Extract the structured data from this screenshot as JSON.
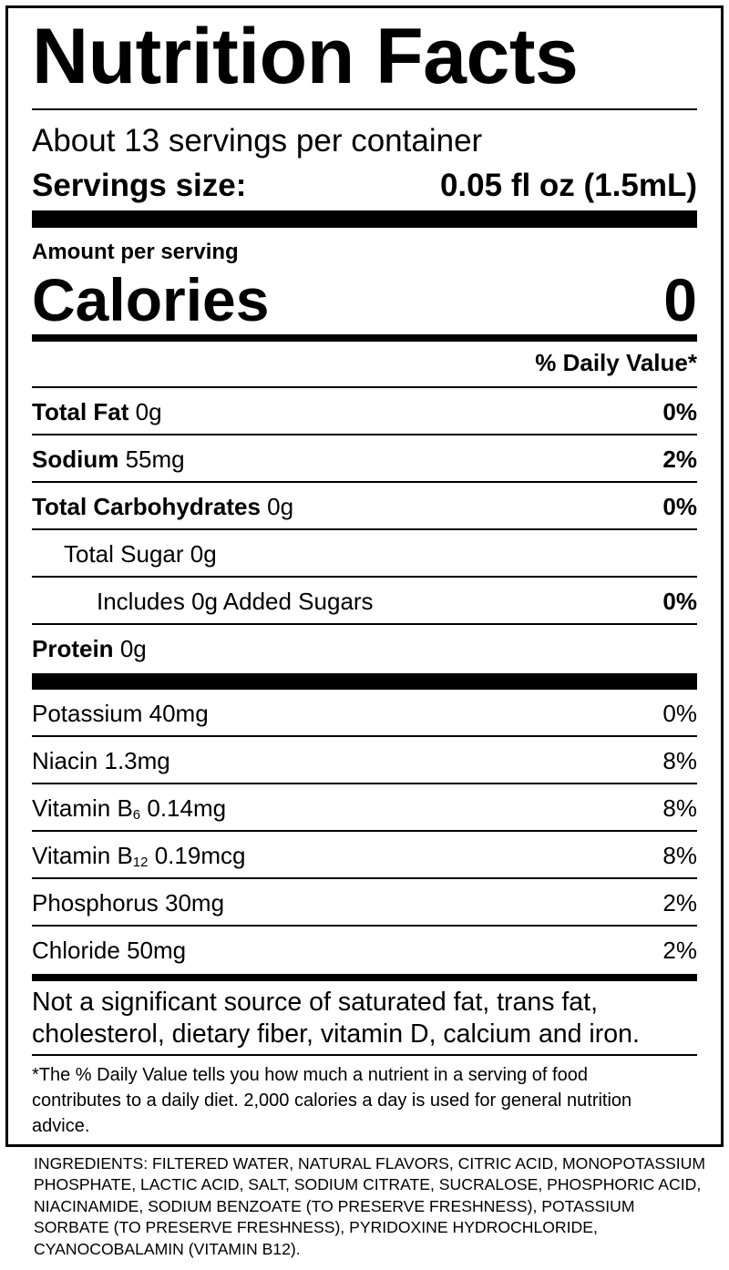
{
  "title": "Nutrition Facts",
  "servings_per_container": "About 13 servings per container",
  "serving_size_label": "Servings size:",
  "serving_size_value": "0.05 fl oz (1.5mL)",
  "amount_per_serving": "Amount per serving",
  "calories_label": "Calories",
  "calories_value": "0",
  "daily_value_header": "% Daily Value*",
  "nutrients": [
    {
      "name": "Total Fat",
      "amount": "0g",
      "dv": "0%"
    },
    {
      "name": "Sodium",
      "amount": "55mg",
      "dv": "2%"
    },
    {
      "name": "Total Carbohydrates",
      "amount": "0g",
      "dv": "0%"
    },
    {
      "name": "Total Sugar 0g",
      "amount": "",
      "dv": ""
    },
    {
      "name": "Includes 0g Added Sugars",
      "amount": "",
      "dv": "0%"
    },
    {
      "name": "Protein",
      "amount": "0g",
      "dv": ""
    }
  ],
  "vitamins": [
    {
      "name": "Potassium",
      "sub": "",
      "amount": "40mg",
      "dv": "0%"
    },
    {
      "name": "Niacin",
      "sub": "",
      "amount": "1.3mg",
      "dv": "8%"
    },
    {
      "name": "Vitamin B",
      "sub": "6",
      "amount": "0.14mg",
      "dv": "8%"
    },
    {
      "name": "Vitamin B",
      "sub": "12",
      "amount": "0.19mcg",
      "dv": "8%"
    },
    {
      "name": "Phosphorus",
      "sub": "",
      "amount": "30mg",
      "dv": "2%"
    },
    {
      "name": "Chloride",
      "sub": "",
      "amount": "50mg",
      "dv": "2%"
    }
  ],
  "not_significant": "Not a significant source of saturated fat, trans fat, cholesterol, dietary fiber, vitamin D, calcium and iron.",
  "footnote": "*The % Daily Value tells you how much a nutrient in a serving of food contributes to a daily diet. 2,000 calories a day is used for general nutrition advice.",
  "ingredients": "INGREDIENTS: FILTERED WATER, NATURAL FLAVORS, CITRIC ACID, MONOPOTASSIUM PHOSPHATE, LACTIC ACID, SALT, SODIUM CITRATE, SUCRALOSE, PHOSPHORIC ACID, NIACINAMIDE, SODIUM BENZOATE (TO PRESERVE FRESHNESS), POTASSIUM SORBATE (TO PRESERVE FRESHNESS), PYRIDOXINE HYDROCHLORIDE, CYANOCOBALAMIN (VITAMIN B12)."
}
